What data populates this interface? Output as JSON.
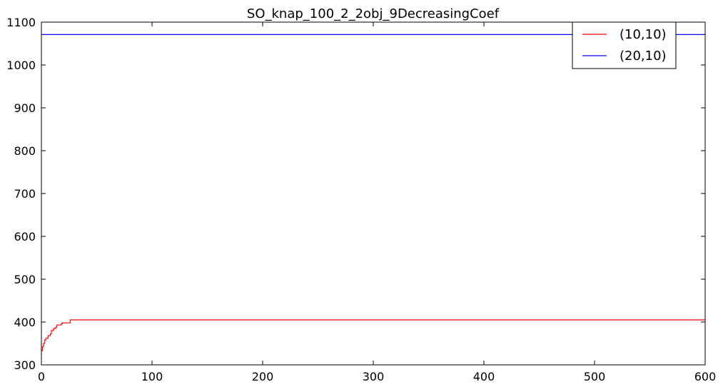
{
  "chart_data": {
    "type": "line",
    "title": "SO_knap_100_2_2obj_9DecreasingCoef",
    "xlabel": "",
    "ylabel": "",
    "xlim": [
      0,
      600
    ],
    "ylim": [
      300,
      1100
    ],
    "xticks": [
      0,
      100,
      200,
      300,
      400,
      500,
      600
    ],
    "yticks": [
      300,
      400,
      500,
      600,
      700,
      800,
      900,
      1000,
      1100
    ],
    "grid": false,
    "legend_position": "top-right",
    "series": [
      {
        "name": "(10,10)",
        "color": "#ff0000",
        "x": [
          0,
          1,
          2,
          3,
          4,
          5,
          6,
          7,
          8,
          9,
          10,
          11,
          12,
          13,
          14,
          15,
          16,
          17,
          18,
          19,
          20,
          21,
          22,
          23,
          24,
          25,
          26,
          27,
          100,
          200,
          300,
          400,
          500,
          600
        ],
        "y": [
          333,
          343,
          350,
          358,
          362,
          362,
          368,
          368,
          372,
          380,
          380,
          385,
          385,
          388,
          393,
          393,
          393,
          393,
          396,
          398,
          398,
          398,
          398,
          398,
          398,
          398,
          405,
          405,
          405,
          405,
          405,
          405,
          405,
          405
        ]
      },
      {
        "name": "(20,10)",
        "color": "#0000ff",
        "x": [
          0,
          600
        ],
        "y": [
          1071,
          1071
        ]
      }
    ]
  }
}
